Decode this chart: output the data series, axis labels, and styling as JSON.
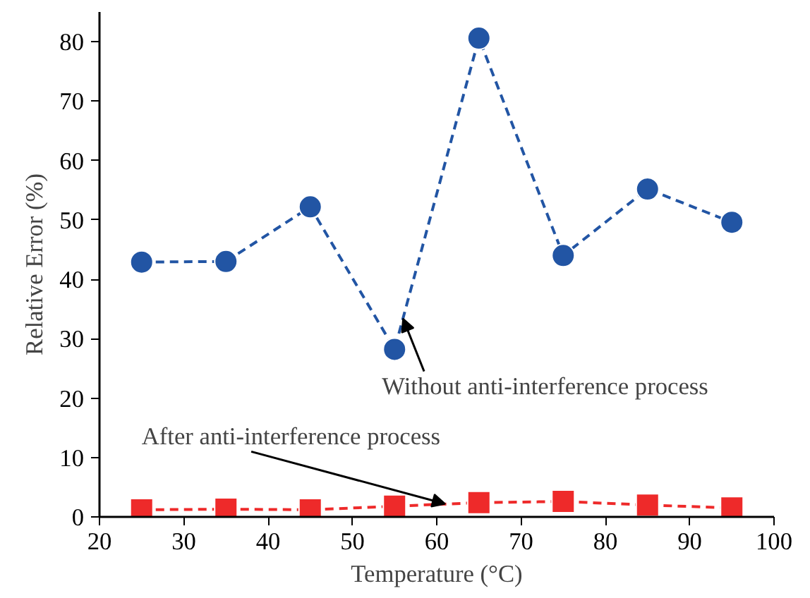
{
  "chart_data": {
    "type": "line",
    "xlabel": "Temperature (°C)",
    "ylabel": "Relative Error (%)",
    "x": [
      25,
      35,
      45,
      55,
      65,
      75,
      85,
      95
    ],
    "series": [
      {
        "color": "#2255a4",
        "marker": "circle",
        "values": [
          42.9,
          43.0,
          52.2,
          28.2,
          80.6,
          44.0,
          55.2,
          49.6
        ]
      },
      {
        "color": "#ee2a2a",
        "marker": "square",
        "values": [
          1.2,
          1.3,
          1.2,
          1.8,
          2.4,
          2.6,
          2.0,
          1.5
        ]
      }
    ],
    "line_style": "dashed",
    "annotations": [
      {
        "text": "Without anti-interference process",
        "x": 56,
        "y": 33.4
      },
      {
        "text": "After anti-interference process",
        "x": 61,
        "y": 2.2
      }
    ],
    "xlim": [
      20,
      100
    ],
    "xticks": [
      20,
      30,
      40,
      50,
      60,
      70,
      80,
      90,
      100
    ],
    "ylim": [
      0,
      85
    ],
    "yticks": [
      0,
      10,
      20,
      30,
      40,
      50,
      60,
      70,
      80
    ],
    "grid": false
  }
}
